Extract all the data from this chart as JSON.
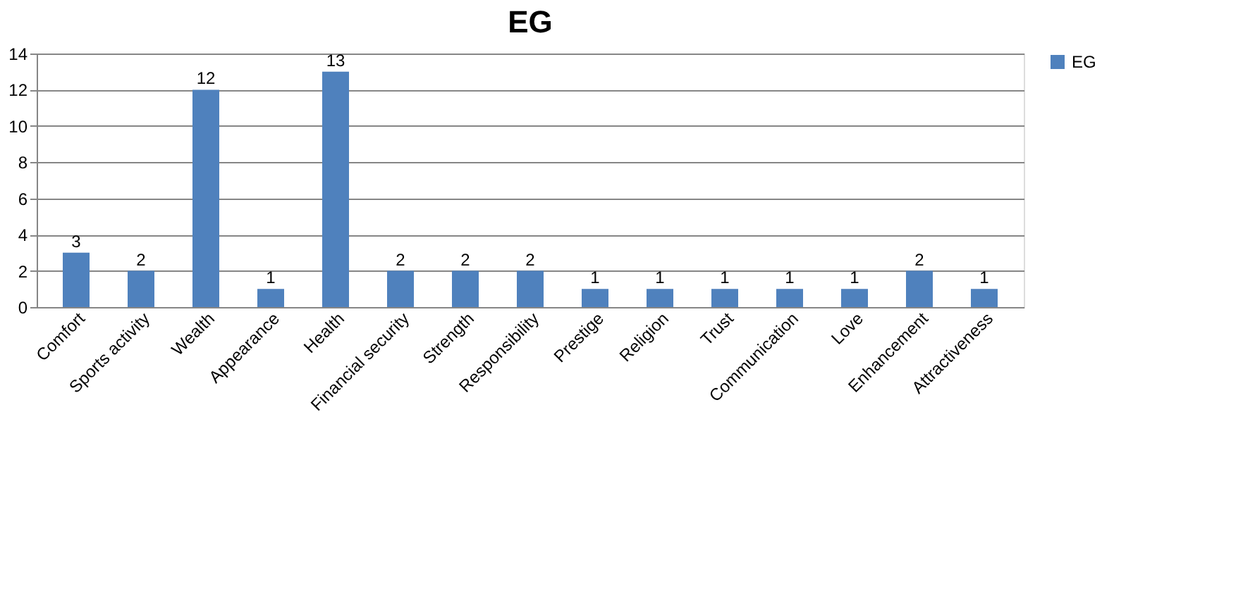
{
  "chart_data": {
    "type": "bar",
    "title": "EG",
    "categories": [
      "Comfort",
      "Sports activity",
      "Wealth",
      "Appearance",
      "Health",
      "Financial security",
      "Strength",
      "Responsibility",
      "Prestige",
      "Religion",
      "Trust",
      "Communication",
      "Love",
      "Enhancement",
      "Attractiveness"
    ],
    "series": [
      {
        "name": "EG",
        "color": "#4f81bd",
        "values": [
          3,
          2,
          12,
          1,
          13,
          2,
          2,
          2,
          1,
          1,
          1,
          1,
          1,
          2,
          1
        ]
      }
    ],
    "ylim": [
      0,
      14
    ],
    "yticks": [
      0,
      2,
      4,
      6,
      8,
      10,
      12,
      14
    ],
    "grid": "y",
    "legend": "right",
    "data_labels": true
  }
}
